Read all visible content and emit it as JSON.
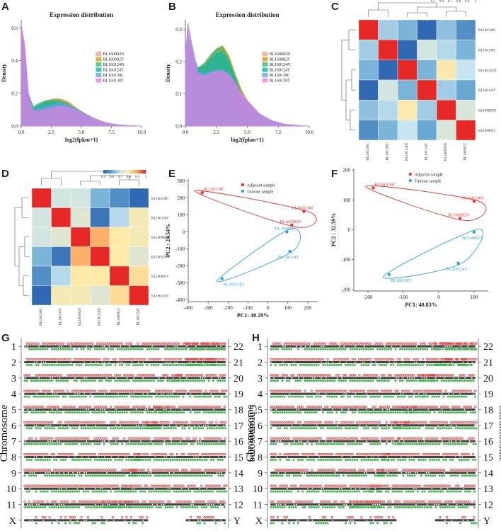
{
  "panel_labels": {
    "A": "A",
    "B": "B",
    "C": "C",
    "D": "D",
    "E": "E",
    "F": "F",
    "G": "G",
    "H": "H"
  },
  "chart_data": [
    {
      "id": "A",
      "type": "area",
      "title": "Expression distribution",
      "xlabel": "log2(fpkm+1)",
      "ylabel": "Density",
      "xlim": [
        0,
        10
      ],
      "ylim": [
        0,
        0.65
      ],
      "xticks": [
        "0.0",
        "2.5",
        "5.0",
        "7.5",
        "10.0"
      ],
      "yticks": [
        "0.0",
        "0.2",
        "0.4",
        "0.6"
      ],
      "legend": [
        "BL160082N",
        "BL160082T",
        "BL160124N",
        "BL160124T",
        "BL160138C",
        "BL160138T"
      ],
      "legend_colors": [
        "#f4a582",
        "#c2a51b",
        "#3cb878",
        "#17b3a3",
        "#5aa7e0",
        "#e77fe3"
      ],
      "series": [
        {
          "name": "BL160082N",
          "x": [
            0.02,
            0.3,
            0.6,
            1,
            1.5,
            2,
            2.5,
            3,
            3.5,
            4,
            4.5,
            5,
            6,
            7,
            8,
            9,
            10
          ],
          "y": [
            0.58,
            0.46,
            0.2,
            0.1,
            0.13,
            0.15,
            0.165,
            0.17,
            0.16,
            0.14,
            0.11,
            0.085,
            0.045,
            0.02,
            0.008,
            0.003,
            0.0
          ]
        },
        {
          "name": "BL160082T",
          "x": [
            0.02,
            0.3,
            0.6,
            1,
            1.5,
            2,
            2.5,
            3,
            3.5,
            4,
            4.5,
            5,
            6,
            7,
            8,
            9,
            10
          ],
          "y": [
            0.56,
            0.45,
            0.2,
            0.1,
            0.13,
            0.15,
            0.16,
            0.165,
            0.16,
            0.145,
            0.115,
            0.09,
            0.048,
            0.02,
            0.008,
            0.003,
            0.0
          ]
        },
        {
          "name": "BL160124N",
          "x": [
            0.02,
            0.3,
            0.6,
            1,
            1.5,
            2,
            2.5,
            3,
            3.5,
            4,
            4.5,
            5,
            6,
            7,
            8,
            9,
            10
          ],
          "y": [
            0.55,
            0.44,
            0.2,
            0.12,
            0.14,
            0.155,
            0.16,
            0.16,
            0.15,
            0.13,
            0.105,
            0.08,
            0.04,
            0.018,
            0.007,
            0.002,
            0.0
          ]
        },
        {
          "name": "BL160124T",
          "x": [
            0.02,
            0.3,
            0.6,
            1,
            1.5,
            2,
            2.5,
            3,
            3.5,
            4,
            4.5,
            5,
            6,
            7,
            8,
            9,
            10
          ],
          "y": [
            0.52,
            0.43,
            0.2,
            0.11,
            0.13,
            0.145,
            0.15,
            0.15,
            0.14,
            0.125,
            0.1,
            0.078,
            0.04,
            0.018,
            0.007,
            0.002,
            0.0
          ]
        },
        {
          "name": "BL160138C",
          "x": [
            0.02,
            0.3,
            0.6,
            1,
            1.5,
            2,
            2.5,
            3,
            3.5,
            4,
            4.5,
            5,
            6,
            7,
            8,
            9,
            10
          ],
          "y": [
            0.6,
            0.48,
            0.2,
            0.1,
            0.11,
            0.12,
            0.13,
            0.14,
            0.14,
            0.13,
            0.11,
            0.088,
            0.05,
            0.022,
            0.009,
            0.003,
            0.0
          ]
        },
        {
          "name": "BL160138T",
          "x": [
            0.02,
            0.3,
            0.6,
            1,
            1.5,
            2,
            2.5,
            3,
            3.5,
            4,
            4.5,
            5,
            6,
            7,
            8,
            9,
            10
          ],
          "y": [
            0.62,
            0.5,
            0.2,
            0.09,
            0.095,
            0.1,
            0.11,
            0.12,
            0.12,
            0.115,
            0.1,
            0.082,
            0.047,
            0.021,
            0.008,
            0.003,
            0.0
          ]
        }
      ]
    },
    {
      "id": "B",
      "type": "area",
      "title": "Expression distribution",
      "xlabel": "log2(fpkm+1)",
      "ylabel": "Density",
      "xlim": [
        0,
        10
      ],
      "ylim": [
        0,
        0.33
      ],
      "xticks": [
        "0.0",
        "2.5",
        "5.0",
        "7.5",
        "10.0"
      ],
      "yticks": [
        "0.0",
        "0.1",
        "0.2",
        "0.3"
      ],
      "legend": [
        "BL160082N",
        "BL160082T",
        "BL160124N",
        "BL160124T",
        "BL160138C",
        "BL160138T"
      ],
      "legend_colors": [
        "#f4a582",
        "#c2a51b",
        "#3cb878",
        "#17b3a3",
        "#5aa7e0",
        "#e77fe3"
      ],
      "series": [
        {
          "name": "BL160082N",
          "x": [
            0,
            0.2,
            0.5,
            1,
            1.5,
            2,
            2.5,
            3,
            3.5,
            4,
            4.5,
            5,
            6,
            7,
            8,
            9,
            10
          ],
          "y": [
            0.2,
            0.28,
            0.24,
            0.18,
            0.19,
            0.215,
            0.235,
            0.245,
            0.215,
            0.16,
            0.11,
            0.075,
            0.035,
            0.015,
            0.006,
            0.002,
            0.0
          ]
        },
        {
          "name": "BL160082T",
          "x": [
            0,
            0.2,
            0.5,
            1,
            1.5,
            2,
            2.5,
            3,
            3.5,
            4,
            4.5,
            5,
            6,
            7,
            8,
            9,
            10
          ],
          "y": [
            0.2,
            0.28,
            0.24,
            0.18,
            0.19,
            0.215,
            0.24,
            0.25,
            0.22,
            0.165,
            0.115,
            0.08,
            0.037,
            0.016,
            0.006,
            0.002,
            0.0
          ]
        },
        {
          "name": "BL160124N",
          "x": [
            0,
            0.2,
            0.5,
            1,
            1.5,
            2,
            2.5,
            3,
            3.5,
            4,
            4.5,
            5,
            6,
            7,
            8,
            9,
            10
          ],
          "y": [
            0.2,
            0.28,
            0.24,
            0.18,
            0.195,
            0.22,
            0.24,
            0.245,
            0.21,
            0.155,
            0.105,
            0.072,
            0.034,
            0.015,
            0.006,
            0.002,
            0.0
          ]
        },
        {
          "name": "BL160124T",
          "x": [
            0,
            0.2,
            0.5,
            1,
            1.5,
            2,
            2.5,
            3,
            3.5,
            4,
            4.5,
            5,
            6,
            7,
            8,
            9,
            10
          ],
          "y": [
            0.2,
            0.28,
            0.24,
            0.18,
            0.185,
            0.205,
            0.225,
            0.23,
            0.2,
            0.15,
            0.102,
            0.07,
            0.033,
            0.014,
            0.005,
            0.002,
            0.0
          ]
        },
        {
          "name": "BL160138C",
          "x": [
            0,
            0.2,
            0.5,
            1,
            1.5,
            2,
            2.5,
            3,
            3.5,
            4,
            4.5,
            5,
            6,
            7,
            8,
            9,
            10
          ],
          "y": [
            0.22,
            0.32,
            0.26,
            0.17,
            0.16,
            0.17,
            0.175,
            0.175,
            0.165,
            0.135,
            0.1,
            0.075,
            0.036,
            0.016,
            0.006,
            0.002,
            0.0
          ]
        },
        {
          "name": "BL160138T",
          "x": [
            0,
            0.2,
            0.5,
            1,
            1.5,
            2,
            2.5,
            3,
            3.5,
            4,
            4.5,
            5,
            6,
            7,
            8,
            9,
            10
          ],
          "y": [
            0.22,
            0.31,
            0.25,
            0.165,
            0.155,
            0.165,
            0.17,
            0.17,
            0.16,
            0.135,
            0.102,
            0.078,
            0.038,
            0.017,
            0.006,
            0.002,
            0.0
          ]
        }
      ]
    },
    {
      "id": "C",
      "type": "heatmap",
      "rows": [
        "BL160138C",
        "BL160138T",
        "BL160124N",
        "BL160124T",
        "BL160082N",
        "BL160082T"
      ],
      "cols": [
        "BL160138C",
        "BL160138T",
        "BL160124N",
        "BL160124T",
        "BL160082N",
        "BL160082T"
      ],
      "scale_ticks": [
        "0.5",
        "0.6",
        "0.7",
        "0.8",
        "0.9",
        "1"
      ],
      "values": [
        [
          1.0,
          0.66,
          0.62,
          0.5,
          0.64,
          0.56
        ],
        [
          0.66,
          1.0,
          0.48,
          0.72,
          0.68,
          0.62
        ],
        [
          0.62,
          0.48,
          1.0,
          0.62,
          0.79,
          0.7
        ],
        [
          0.5,
          0.72,
          0.62,
          1.0,
          0.66,
          0.6
        ],
        [
          0.64,
          0.68,
          0.79,
          0.66,
          1.0,
          0.73
        ],
        [
          0.56,
          0.62,
          0.7,
          0.6,
          0.73,
          1.0
        ]
      ]
    },
    {
      "id": "D",
      "type": "heatmap",
      "rows": [
        "BL160138C",
        "BL160138T",
        "BL160082N",
        "BL160124N",
        "BL160082T",
        "BL160124T"
      ],
      "cols": [
        "BL160138C",
        "BL160138T",
        "BL160082N",
        "BL160124N",
        "BL160082T",
        "BL160124T"
      ],
      "scale_ticks": [
        "0.5",
        "0.6",
        "0.7",
        "0.8",
        "0.9",
        "1"
      ],
      "values": [
        [
          1.0,
          0.72,
          0.72,
          0.62,
          0.56,
          0.5
        ],
        [
          0.72,
          1.0,
          0.74,
          0.52,
          0.68,
          0.78
        ],
        [
          0.72,
          0.74,
          1.0,
          0.88,
          0.8,
          0.78
        ],
        [
          0.62,
          0.52,
          0.88,
          1.0,
          0.8,
          0.74
        ],
        [
          0.56,
          0.68,
          0.8,
          0.8,
          1.0,
          0.82
        ],
        [
          0.5,
          0.78,
          0.78,
          0.74,
          0.82,
          1.0
        ]
      ]
    },
    {
      "id": "E",
      "type": "scatter",
      "xlabel": "PC1: 40.29%",
      "ylabel": "PC2 : 24.54%",
      "xlim": [
        -400,
        250
      ],
      "ylim": [
        -410,
        310
      ],
      "xticks": [
        -400,
        -300,
        -200,
        -100,
        0,
        100,
        200
      ],
      "yticks": [
        -400,
        -300,
        -200,
        -100,
        0,
        100,
        200,
        300
      ],
      "legend": [
        "Adjacent sample",
        "Tumour sample"
      ],
      "series": [
        {
          "name": "Adjacent sample",
          "color": "#e8322e",
          "points": [
            {
              "label": "BL160138C",
              "x": -330,
              "y": 230
            },
            {
              "label": "BL160124N",
              "x": 180,
              "y": 120
            },
            {
              "label": "BL160082N",
              "x": 120,
              "y": 40
            }
          ]
        },
        {
          "name": "Tumour sample",
          "color": "#2ea3d8",
          "points": [
            {
              "label": "BL160082T",
              "x": 95,
              "y": 0
            },
            {
              "label": "BL160124T",
              "x": 110,
              "y": -115
            },
            {
              "label": "BL160138T",
              "x": -230,
              "y": -275
            }
          ]
        }
      ]
    },
    {
      "id": "F",
      "type": "scatter",
      "xlabel": "PC1: 40.83%",
      "ylabel": "PC2 : 32.59%",
      "xlim": [
        -240,
        140
      ],
      "ylim": [
        -205,
        205
      ],
      "xticks": [
        -200,
        -100,
        0,
        100
      ],
      "yticks": [
        -200,
        -100,
        0,
        100,
        200
      ],
      "legend": [
        "Adjacent sample",
        "Tumour sample"
      ],
      "series": [
        {
          "name": "Adjacent sample",
          "color": "#e8322e",
          "points": [
            {
              "label": "BL160138C",
              "x": -185,
              "y": 140
            },
            {
              "label": "BL160124N",
              "x": 100,
              "y": 95
            },
            {
              "label": "BL160082N",
              "x": 60,
              "y": 38
            }
          ]
        },
        {
          "name": "Tumour sample",
          "color": "#2ea3d8",
          "points": [
            {
              "label": "BL160082T",
              "x": 100,
              "y": -8
            },
            {
              "label": "BL160124T",
              "x": 55,
              "y": -112
            },
            {
              "label": "BL160138T",
              "x": -140,
              "y": -150
            }
          ]
        }
      ]
    },
    {
      "id": "G",
      "type": "karyogram",
      "ylabel_left": "Chromosome",
      "ylabel_right": "Chromosome",
      "left": [
        "1",
        "2",
        "3",
        "4",
        "5",
        "6",
        "7",
        "8",
        "9",
        "10",
        "11",
        "X"
      ],
      "right": [
        "22",
        "21",
        "20",
        "19",
        "18",
        "17",
        "16",
        "15",
        "14",
        "13",
        "12",
        "Y"
      ],
      "left_len": [
        1.0,
        0.96,
        0.8,
        0.76,
        0.72,
        0.68,
        0.64,
        0.58,
        0.56,
        0.54,
        0.54,
        0.62
      ],
      "right_len": [
        0.2,
        0.2,
        0.28,
        0.26,
        0.36,
        0.4,
        0.38,
        0.46,
        0.48,
        0.52,
        0.62,
        0.2
      ]
    },
    {
      "id": "H",
      "type": "karyogram",
      "ylabel_left": "Chromosome",
      "ylabel_right": "Chromosome",
      "left": [
        "1",
        "2",
        "3",
        "4",
        "5",
        "6",
        "7",
        "8",
        "9",
        "10",
        "11",
        "X"
      ],
      "right": [
        "22",
        "21",
        "20",
        "19",
        "18",
        "17",
        "16",
        "15",
        "14",
        "13",
        "12",
        "Y"
      ],
      "left_len": [
        1.0,
        0.96,
        0.8,
        0.76,
        0.72,
        0.68,
        0.64,
        0.58,
        0.56,
        0.54,
        0.54,
        0.62
      ],
      "right_len": [
        0.2,
        0.2,
        0.28,
        0.26,
        0.36,
        0.4,
        0.38,
        0.46,
        0.48,
        0.52,
        0.62,
        0.2
      ]
    }
  ]
}
